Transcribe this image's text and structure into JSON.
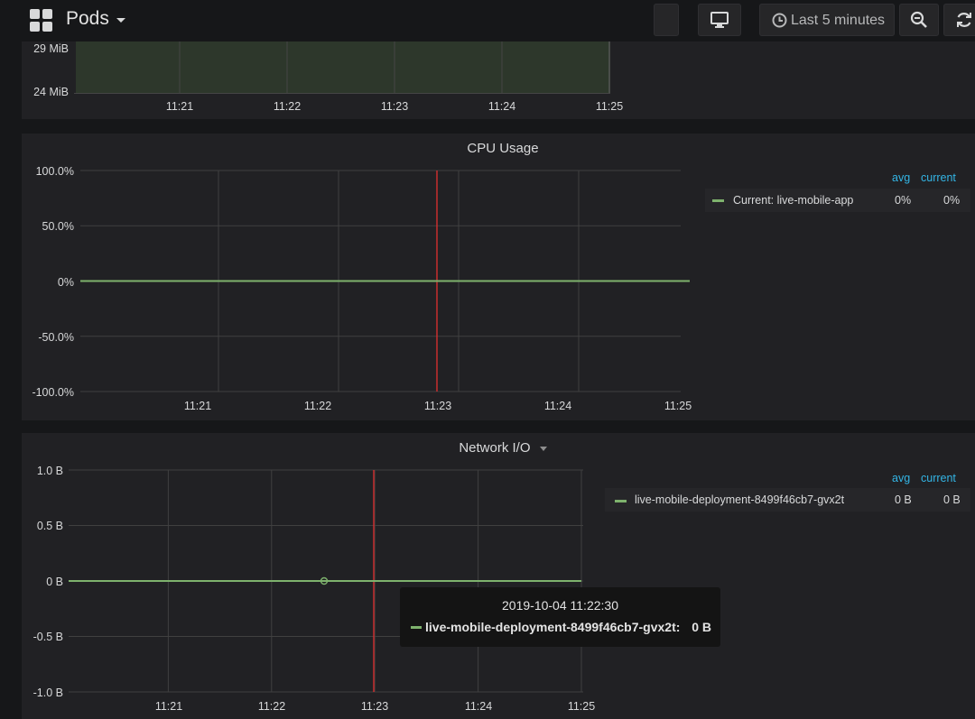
{
  "navbar": {
    "title": "Pods",
    "time_range": "Last 5 minutes"
  },
  "memory_panel": {
    "y_ticks": [
      "29 MiB",
      "24 MiB"
    ],
    "x_ticks": [
      "11:21",
      "11:22",
      "11:23",
      "11:24",
      "11:25"
    ]
  },
  "cpu_panel": {
    "title": "CPU Usage",
    "y_ticks": [
      "100.0%",
      "50.0%",
      "0%",
      "-50.0%",
      "-100.0%"
    ],
    "x_ticks": [
      "11:21",
      "11:22",
      "11:23",
      "11:24",
      "11:25"
    ],
    "legend": {
      "avg_header": "avg",
      "current_header": "current",
      "series": [
        {
          "name": "Current: live-mobile-app",
          "avg": "0%",
          "current": "0%",
          "color": "#7eb26d"
        }
      ]
    }
  },
  "network_panel": {
    "title": "Network I/O",
    "y_ticks": [
      "1.0 B",
      "0.5 B",
      "0 B",
      "-0.5 B",
      "-1.0 B"
    ],
    "x_ticks": [
      "11:21",
      "11:22",
      "11:23",
      "11:24",
      "11:25"
    ],
    "legend": {
      "avg_header": "avg",
      "current_header": "current",
      "series": [
        {
          "name": "live-mobile-deployment-8499f46cb7-gvx2t",
          "avg": "0 B",
          "current": "0 B",
          "color": "#7eb26d"
        }
      ]
    }
  },
  "tooltip": {
    "time": "2019-10-04 11:22:30",
    "series": "live-mobile-deployment-8499f46cb7-gvx2t:",
    "value": "0 B"
  },
  "chart_data": [
    {
      "type": "area",
      "ylabel": "",
      "y_ticks": [
        "29 MiB",
        "24 MiB"
      ],
      "x": [
        "11:21",
        "11:22",
        "11:23",
        "11:24",
        "11:25"
      ]
    },
    {
      "type": "line",
      "title": "CPU Usage",
      "x": [
        "11:21",
        "11:22",
        "11:23",
        "11:24",
        "11:25"
      ],
      "ylim": [
        -100,
        100
      ],
      "series": [
        {
          "name": "Current: live-mobile-app",
          "values": [
            0,
            0,
            0,
            0,
            0
          ]
        }
      ]
    },
    {
      "type": "line",
      "title": "Network I/O",
      "x": [
        "11:21",
        "11:22",
        "11:23",
        "11:24",
        "11:25"
      ],
      "ylim": [
        -1.0,
        1.0
      ],
      "series": [
        {
          "name": "live-mobile-deployment-8499f46cb7-gvx2t",
          "values": [
            0,
            0,
            0,
            0,
            0
          ]
        }
      ]
    }
  ]
}
